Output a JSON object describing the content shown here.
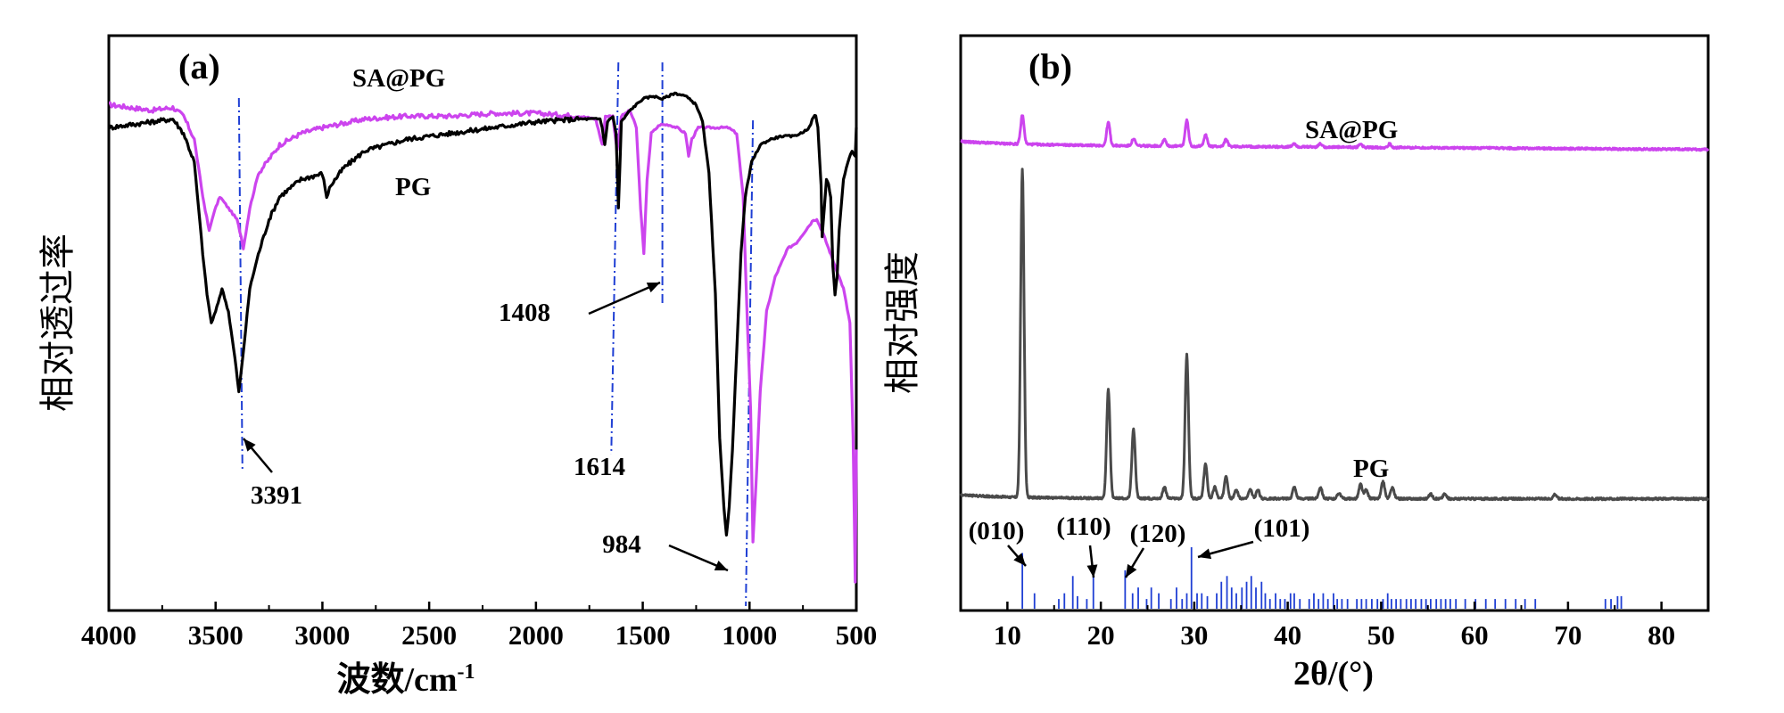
{
  "chart_data": [
    {
      "panel": "(a)",
      "type": "line",
      "title": "",
      "xlabel": "波数/cm",
      "xlabel_superscript": "-1",
      "ylabel": "相对透过率",
      "xlim": [
        4000,
        500
      ],
      "ylim": [
        0,
        100
      ],
      "xticks": [
        4000,
        3500,
        3000,
        2500,
        2000,
        1500,
        1000,
        500
      ],
      "colors": {
        "PG": "#000000",
        "SA@PG": "#cc44ee",
        "guide": "#1f3fd4"
      },
      "series": [
        {
          "name": "SA@PG",
          "points": [
            [
              4000,
              88
            ],
            [
              3800,
              87
            ],
            [
              3700,
              87.5
            ],
            [
              3650,
              86
            ],
            [
              3600,
              82
            ],
            [
              3560,
              72
            ],
            [
              3530,
              66
            ],
            [
              3510,
              69
            ],
            [
              3480,
              72
            ],
            [
              3440,
              70
            ],
            [
              3400,
              68
            ],
            [
              3380,
              65
            ],
            [
              3370,
              63
            ],
            [
              3340,
              70
            ],
            [
              3300,
              76
            ],
            [
              3200,
              81
            ],
            [
              3100,
              83
            ],
            [
              3000,
              84
            ],
            [
              2800,
              85.5
            ],
            [
              2600,
              86
            ],
            [
              2400,
              86
            ],
            [
              2200,
              86.5
            ],
            [
              2000,
              86.5
            ],
            [
              1800,
              86
            ],
            [
              1720,
              85.5
            ],
            [
              1690,
              81
            ],
            [
              1675,
              86
            ],
            [
              1640,
              86
            ],
            [
              1620,
              80
            ],
            [
              1600,
              86
            ],
            [
              1560,
              87
            ],
            [
              1530,
              84
            ],
            [
              1510,
              70
            ],
            [
              1495,
              62
            ],
            [
              1480,
              75
            ],
            [
              1460,
              83
            ],
            [
              1420,
              84.5
            ],
            [
              1380,
              84.5
            ],
            [
              1340,
              84
            ],
            [
              1300,
              83
            ],
            [
              1285,
              79
            ],
            [
              1270,
              82
            ],
            [
              1240,
              84
            ],
            [
              1200,
              84
            ],
            [
              1150,
              84
            ],
            [
              1100,
              84
            ],
            [
              1060,
              83
            ],
            [
              1030,
              72
            ],
            [
              1010,
              50
            ],
            [
              995,
              35
            ],
            [
              984,
              12
            ],
            [
              970,
              22
            ],
            [
              950,
              38
            ],
            [
              920,
              52
            ],
            [
              880,
              58
            ],
            [
              820,
              63
            ],
            [
              780,
              64
            ],
            [
              740,
              66
            ],
            [
              700,
              68
            ],
            [
              690,
              68
            ],
            [
              685,
              68
            ],
            [
              660,
              66
            ],
            [
              630,
              63
            ],
            [
              600,
              60
            ],
            [
              560,
              56
            ],
            [
              530,
              50
            ],
            [
              515,
              30
            ],
            [
              505,
              5
            ],
            [
              500,
              28
            ]
          ]
        },
        {
          "name": "PG",
          "points": [
            [
              4000,
              84
            ],
            [
              3800,
              85
            ],
            [
              3700,
              85.5
            ],
            [
              3650,
              83
            ],
            [
              3600,
              78
            ],
            [
              3560,
              62
            ],
            [
              3540,
              55
            ],
            [
              3520,
              50
            ],
            [
              3500,
              52
            ],
            [
              3470,
              56
            ],
            [
              3440,
              52
            ],
            [
              3410,
              44
            ],
            [
              3391,
              38
            ],
            [
              3370,
              45
            ],
            [
              3340,
              56
            ],
            [
              3300,
              62
            ],
            [
              3250,
              68
            ],
            [
              3200,
              72
            ],
            [
              3100,
              75
            ],
            [
              3000,
              76
            ],
            [
              2980,
              72
            ],
            [
              2960,
              74
            ],
            [
              2900,
              77
            ],
            [
              2800,
              80
            ],
            [
              2600,
              82
            ],
            [
              2400,
              83
            ],
            [
              2200,
              84
            ],
            [
              2000,
              85
            ],
            [
              1800,
              85.5
            ],
            [
              1700,
              85.5
            ],
            [
              1690,
              84
            ],
            [
              1678,
              81
            ],
            [
              1665,
              85
            ],
            [
              1640,
              86
            ],
            [
              1625,
              83
            ],
            [
              1614,
              70
            ],
            [
              1600,
              85
            ],
            [
              1560,
              87
            ],
            [
              1500,
              89
            ],
            [
              1450,
              89.5
            ],
            [
              1408,
              89
            ],
            [
              1350,
              90
            ],
            [
              1300,
              89.5
            ],
            [
              1250,
              88
            ],
            [
              1220,
              85
            ],
            [
              1190,
              76
            ],
            [
              1160,
              55
            ],
            [
              1140,
              30
            ],
            [
              1120,
              18
            ],
            [
              1108,
              13
            ],
            [
              1095,
              18
            ],
            [
              1080,
              28
            ],
            [
              1060,
              45
            ],
            [
              1040,
              62
            ],
            [
              1020,
              72
            ],
            [
              990,
              78
            ],
            [
              950,
              81
            ],
            [
              900,
              82
            ],
            [
              850,
              82.5
            ],
            [
              800,
              82.5
            ],
            [
              760,
              83
            ],
            [
              720,
              84
            ],
            [
              700,
              86
            ],
            [
              690,
              86
            ],
            [
              680,
              84
            ],
            [
              665,
              74
            ],
            [
              660,
              65
            ],
            [
              650,
              70
            ],
            [
              640,
              75
            ],
            [
              630,
              74
            ],
            [
              620,
              72
            ],
            [
              610,
              60
            ],
            [
              600,
              55
            ],
            [
              590,
              58
            ],
            [
              580,
              66
            ],
            [
              560,
              75
            ],
            [
              540,
              78
            ],
            [
              520,
              80
            ],
            [
              505,
              79
            ],
            [
              500,
              84
            ]
          ]
        }
      ],
      "series_labels": {
        "SA@PG": "SA@PG",
        "PG": "PG"
      },
      "guide_lines": [
        3391,
        1614,
        1408,
        984
      ],
      "annotations": [
        {
          "text": "3391",
          "x": 3391,
          "y": 25
        },
        {
          "text": "1614",
          "x": 1614,
          "y": 25
        },
        {
          "text": "1408",
          "x": 1408,
          "y": 52
        },
        {
          "text": "984",
          "x": 984,
          "y": 10
        }
      ]
    },
    {
      "panel": "(b)",
      "type": "line",
      "title": "",
      "xlabel": "2θ/(°)",
      "ylabel": "相对强度",
      "xlim": [
        5,
        85
      ],
      "ylim": [
        0,
        100
      ],
      "xticks": [
        10,
        20,
        30,
        40,
        50,
        60,
        70,
        80
      ],
      "colors": {
        "PG": "#4a4a4a",
        "SA@PG": "#cc44ee",
        "reference": "#1f3fd4"
      },
      "series": [
        {
          "name": "SA@PG",
          "baseline": 81,
          "peaks": [
            [
              11.6,
              5
            ],
            [
              20.8,
              4
            ],
            [
              23.5,
              1.2
            ],
            [
              26.8,
              1.2
            ],
            [
              29.2,
              4.5
            ],
            [
              31.2,
              2
            ],
            [
              33.4,
              1.2
            ],
            [
              40.7,
              0.6
            ],
            [
              43.5,
              0.6
            ],
            [
              47.8,
              0.6
            ],
            [
              50.9,
              0.6
            ]
          ]
        },
        {
          "name": "PG",
          "baseline": 19.5,
          "peaks": [
            [
              11.6,
              57
            ],
            [
              20.8,
              19
            ],
            [
              23.5,
              12
            ],
            [
              26.8,
              2
            ],
            [
              29.2,
              25
            ],
            [
              31.2,
              6
            ],
            [
              32.2,
              2
            ],
            [
              33.4,
              4
            ],
            [
              34.5,
              1.5
            ],
            [
              36.0,
              1.5
            ],
            [
              36.8,
              1.5
            ],
            [
              40.7,
              2
            ],
            [
              43.5,
              2
            ],
            [
              45.5,
              1
            ],
            [
              47.8,
              2.5
            ],
            [
              48.4,
              1.5
            ],
            [
              50.2,
              3
            ],
            [
              51.2,
              2
            ],
            [
              55.3,
              0.8
            ],
            [
              56.8,
              0.8
            ],
            [
              68.6,
              0.8
            ]
          ]
        }
      ],
      "series_labels": {
        "SA@PG": "SA@PG",
        "PG": "PG"
      },
      "reference_lines": [
        [
          11.6,
          10
        ],
        [
          12.9,
          3
        ],
        [
          15.5,
          2
        ],
        [
          16.1,
          3
        ],
        [
          17.0,
          6
        ],
        [
          17.5,
          2.5
        ],
        [
          18.5,
          2
        ],
        [
          19.2,
          7
        ],
        [
          22.6,
          7
        ],
        [
          23.4,
          3
        ],
        [
          24.0,
          4
        ],
        [
          24.9,
          2
        ],
        [
          25.4,
          4
        ],
        [
          26.2,
          3
        ],
        [
          27.5,
          2
        ],
        [
          28.1,
          4
        ],
        [
          28.7,
          2
        ],
        [
          29.2,
          3
        ],
        [
          29.7,
          11
        ],
        [
          30.3,
          3
        ],
        [
          30.8,
          3
        ],
        [
          31.4,
          2.5
        ],
        [
          32.4,
          3
        ],
        [
          32.9,
          5
        ],
        [
          33.5,
          6
        ],
        [
          34.0,
          4
        ],
        [
          34.5,
          3
        ],
        [
          35.1,
          4
        ],
        [
          35.6,
          5
        ],
        [
          36.1,
          6
        ],
        [
          36.6,
          4
        ],
        [
          37.2,
          5
        ],
        [
          37.6,
          3
        ],
        [
          38.1,
          2
        ],
        [
          38.7,
          3
        ],
        [
          39.2,
          2
        ],
        [
          39.7,
          2
        ],
        [
          40.3,
          3
        ],
        [
          40.7,
          3
        ],
        [
          41.3,
          2
        ],
        [
          42.3,
          2
        ],
        [
          42.8,
          3
        ],
        [
          43.3,
          2
        ],
        [
          43.8,
          3
        ],
        [
          44.3,
          2
        ],
        [
          44.9,
          3
        ],
        [
          45.3,
          2
        ],
        [
          45.8,
          2
        ],
        [
          46.4,
          2
        ],
        [
          47.4,
          2
        ],
        [
          47.9,
          2
        ],
        [
          48.4,
          2
        ],
        [
          49.0,
          2
        ],
        [
          49.6,
          2
        ],
        [
          50.2,
          2
        ],
        [
          50.7,
          3
        ],
        [
          51.1,
          2
        ],
        [
          51.6,
          2
        ],
        [
          52.1,
          2
        ],
        [
          52.7,
          2
        ],
        [
          53.2,
          2
        ],
        [
          53.7,
          2
        ],
        [
          54.3,
          2
        ],
        [
          54.8,
          2
        ],
        [
          55.3,
          2
        ],
        [
          55.9,
          2
        ],
        [
          56.4,
          2
        ],
        [
          56.9,
          2
        ],
        [
          57.4,
          2
        ],
        [
          58.0,
          2
        ],
        [
          59.0,
          2
        ],
        [
          60.1,
          2
        ],
        [
          61.2,
          2
        ],
        [
          62.2,
          2
        ],
        [
          63.3,
          2
        ],
        [
          64.4,
          2
        ],
        [
          65.4,
          2
        ],
        [
          66.5,
          2
        ],
        [
          74.0,
          2
        ],
        [
          74.6,
          2
        ],
        [
          75.3,
          2.5
        ],
        [
          75.7,
          2.5
        ]
      ],
      "hkl_labels": [
        {
          "text": "(010)",
          "x": 11.6
        },
        {
          "text": "(110)",
          "x": 19.2
        },
        {
          "text": "(120)",
          "x": 22.6
        },
        {
          "text": "(101)",
          "x": 29.7
        }
      ]
    }
  ]
}
